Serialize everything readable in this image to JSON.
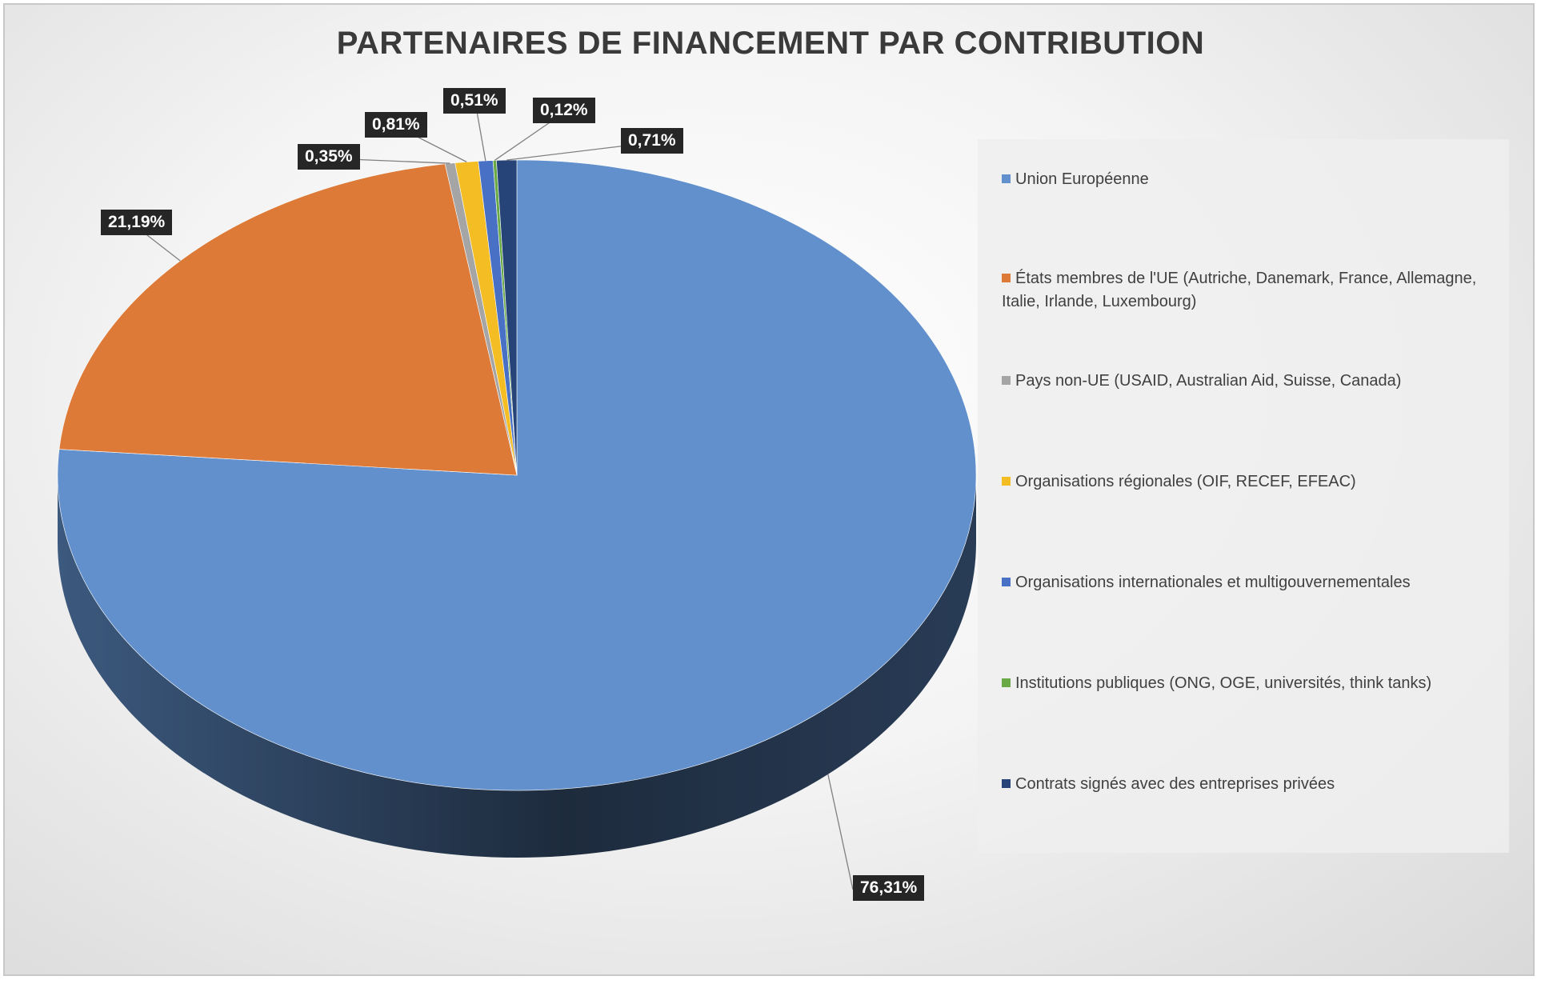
{
  "chart_data": {
    "type": "pie",
    "title": "PARTENAIRES DE FINANCEMENT PAR CONTRIBUTION",
    "legend_position": "right",
    "slices": [
      {
        "label": "Union Européenne",
        "value": 76.31,
        "display": "76,31%",
        "color": "#6190cc"
      },
      {
        "label": "États membres de l'UE (Autriche, Danemark, France, Allemagne, Italie, Irlande, Luxembourg)",
        "value": 21.19,
        "display": "21,19%",
        "color": "#dd7a38"
      },
      {
        "label": "Pays non-UE (USAID, Australian Aid, Suisse, Canada)",
        "value": 0.35,
        "display": "0,35%",
        "color": "#a5a5a5"
      },
      {
        "label": "Organisations régionales (OIF, RECEF, EFEAC)",
        "value": 0.81,
        "display": "0,81%",
        "color": "#f4bd23"
      },
      {
        "label": "Organisations internationales et multigouvernementales",
        "value": 0.51,
        "display": "0,51%",
        "color": "#4870c4"
      },
      {
        "label": "Institutions publiques (ONG, OGE, universités, think tanks)",
        "value": 0.12,
        "display": "0,12%",
        "color": "#6aaa46"
      },
      {
        "label": "Contrats signés avec des entreprises privées",
        "value": 0.71,
        "display": "0,71%",
        "color": "#264478"
      }
    ]
  }
}
